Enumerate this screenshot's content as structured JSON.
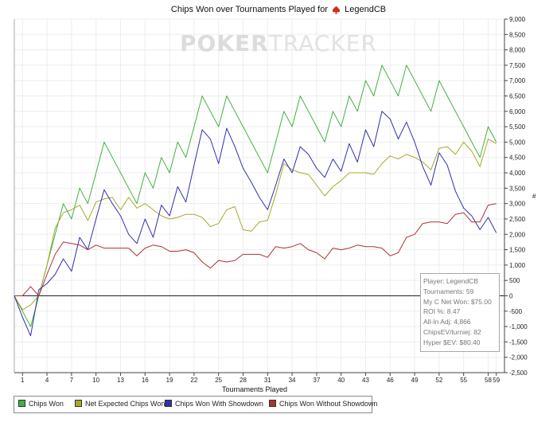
{
  "chart_data": {
    "type": "line",
    "title_prefix": "Chips Won over Tournaments Played for",
    "title_player": "LegendCB",
    "xlabel": "Tournaments Played",
    "ylabel": "#",
    "xlim": [
      0,
      60
    ],
    "ylim": [
      -2500,
      9000
    ],
    "y_ticks": [
      "-2,500",
      "-2,000",
      "-1,500",
      "-1,000",
      "-500",
      "0",
      "500",
      "1,000",
      "1,500",
      "2,000",
      "2,500",
      "3,000",
      "3,500",
      "4,000",
      "4,500",
      "5,000",
      "5,500",
      "6,000",
      "6,500",
      "7,000",
      "7,500",
      "8,000",
      "8,500",
      "9,000"
    ],
    "x_ticks": [
      1,
      4,
      7,
      10,
      13,
      16,
      19,
      22,
      25,
      28,
      31,
      34,
      37,
      40,
      43,
      46,
      49,
      52,
      55,
      58,
      59
    ],
    "x_tick_labels": [
      "1",
      "4",
      "7",
      "10",
      "13",
      "16",
      "19",
      "22",
      "25",
      "28",
      "31",
      "34",
      "37",
      "40",
      "43",
      "46",
      "49",
      "52",
      "55",
      "58",
      "59"
    ],
    "grid": true,
    "legend_position": "bottom-left",
    "watermark_left": "POKER",
    "watermark_right": "TRACKER",
    "x": [
      0,
      1,
      2,
      3,
      4,
      5,
      6,
      7,
      8,
      9,
      10,
      11,
      12,
      13,
      14,
      15,
      16,
      17,
      18,
      19,
      20,
      21,
      22,
      23,
      24,
      25,
      26,
      27,
      28,
      29,
      30,
      31,
      32,
      33,
      34,
      35,
      36,
      37,
      38,
      39,
      40,
      41,
      42,
      43,
      44,
      45,
      46,
      47,
      48,
      49,
      50,
      51,
      52,
      53,
      54,
      55,
      56,
      57,
      58,
      59
    ],
    "series": [
      {
        "name": "Chips Won",
        "color": "#3fb23f",
        "values": [
          0,
          -500,
          -1000,
          0,
          1000,
          2000,
          3000,
          2500,
          3500,
          3000,
          4000,
          5000,
          4500,
          4000,
          3500,
          3000,
          4000,
          3500,
          4500,
          4000,
          5000,
          4500,
          5500,
          6500,
          6000,
          5500,
          6500,
          6000,
          5500,
          5000,
          4500,
          4000,
          5000,
          6000,
          5500,
          6500,
          6000,
          5500,
          5000,
          6000,
          5500,
          6500,
          6000,
          7000,
          6500,
          7500,
          7000,
          6500,
          7500,
          7000,
          6500,
          6000,
          7000,
          6500,
          6000,
          5500,
          5000,
          4500,
          5500,
          5000
        ]
      },
      {
        "name": "Net Expected Chips Won",
        "color": "#a8a82a",
        "values": [
          0,
          -450,
          -300,
          0,
          1000,
          2200,
          2700,
          2800,
          2950,
          2450,
          3050,
          3150,
          3200,
          2800,
          3200,
          2850,
          3000,
          2800,
          2600,
          2500,
          2550,
          2650,
          2650,
          2550,
          2250,
          2350,
          2800,
          2900,
          2150,
          2100,
          2400,
          2450,
          3300,
          4300,
          4100,
          4000,
          3950,
          3600,
          3250,
          3550,
          3750,
          4000,
          4000,
          4000,
          3950,
          4300,
          4550,
          4450,
          4600,
          4500,
          4350,
          4100,
          4800,
          4850,
          4600,
          5000,
          4700,
          4200,
          5100,
          4950
        ]
      },
      {
        "name": "Chips Won With Showdown",
        "color": "#3030b0",
        "values": [
          0,
          -700,
          -1300,
          200,
          400,
          700,
          1200,
          800,
          1900,
          1500,
          2500,
          3450,
          3000,
          2600,
          2000,
          1700,
          2500,
          1900,
          2950,
          2600,
          3550,
          3050,
          4250,
          5400,
          5100,
          4300,
          5450,
          4850,
          4150,
          3700,
          3200,
          2800,
          3600,
          4450,
          4000,
          4850,
          4600,
          4150,
          3850,
          4450,
          4050,
          4950,
          4350,
          5400,
          4850,
          6000,
          5750,
          5100,
          5650,
          5000,
          4200,
          3600,
          4650,
          4250,
          3400,
          2850,
          2600,
          2150,
          2550,
          2050
        ]
      },
      {
        "name": "Chips Won Without Showdown",
        "color": "#b03030",
        "values": [
          0,
          0,
          300,
          0,
          700,
          1350,
          1750,
          1700,
          1650,
          1500,
          1650,
          1550,
          1550,
          1550,
          1550,
          1300,
          1550,
          1650,
          1600,
          1450,
          1450,
          1500,
          1400,
          1100,
          900,
          1150,
          1100,
          1150,
          1350,
          1350,
          1350,
          1250,
          1600,
          1550,
          1600,
          1700,
          1500,
          1400,
          1200,
          1550,
          1500,
          1550,
          1650,
          1600,
          1600,
          1550,
          1300,
          1400,
          1900,
          2000,
          2350,
          2400,
          2400,
          2350,
          2650,
          2700,
          2400,
          2400,
          2950,
          3000
        ]
      }
    ]
  },
  "stats": [
    "Player: LegendCB",
    "Tournaments: 59",
    "My C Net Won: $75.00",
    "ROI %: 8.47",
    "All-In Adj: 4,866",
    "ChipsEV/turniej: 82",
    "Hyper $EV: $80.40"
  ]
}
